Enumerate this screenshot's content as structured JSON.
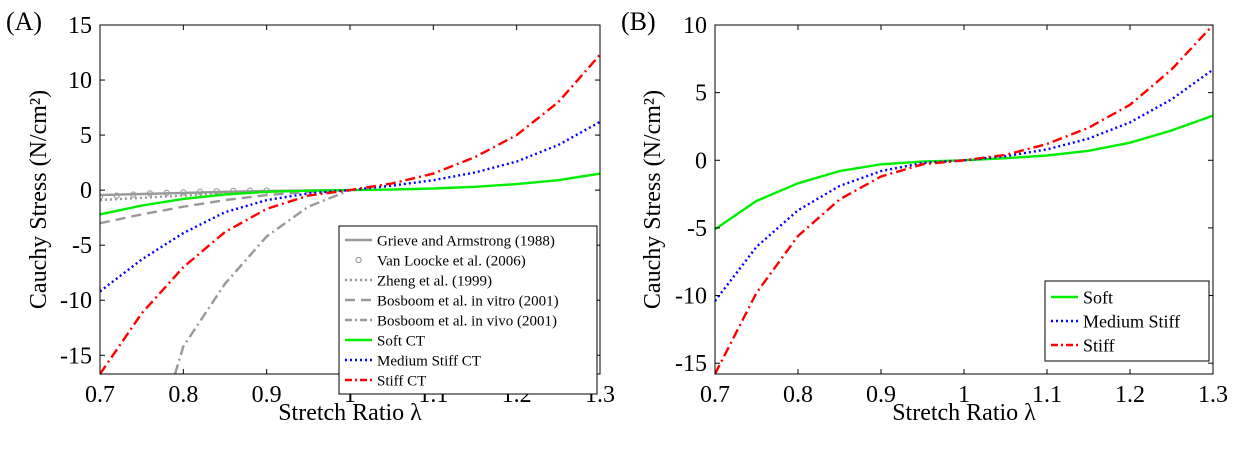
{
  "chart_data": [
    {
      "type": "line",
      "panel_label": "(A)",
      "xlabel": "Stretch Ratio λ",
      "ylabel": "Cauchy Stress (N/cm²)",
      "xlim": [
        0.7,
        1.3
      ],
      "ylim": [
        -16.7,
        15
      ],
      "xticks": [
        "0.7",
        "0.8",
        "0.9",
        "1",
        "1.1",
        "1.2",
        "1.3"
      ],
      "yticks": [
        "15",
        "10",
        "5",
        "0",
        "-5",
        "-10",
        "-15"
      ],
      "xtick_values": [
        0.7,
        0.8,
        0.9,
        1.0,
        1.1,
        1.2,
        1.3
      ],
      "ytick_values": [
        15,
        10,
        5,
        0,
        -5,
        -10,
        -15
      ],
      "grid": false,
      "legend_position": "bottom-right",
      "series": [
        {
          "name": "Grieve and Armstrong (1988)",
          "color": "#999999",
          "style": "solid",
          "x": [
            0.7,
            0.75,
            0.8,
            0.85,
            0.9,
            0.95,
            1.0
          ],
          "y": [
            -0.45,
            -0.35,
            -0.25,
            -0.15,
            -0.08,
            -0.03,
            0
          ]
        },
        {
          "name": "Van Loocke et al. (2006)",
          "color": "#999999",
          "style": "circle",
          "x": [
            0.7,
            0.72,
            0.74,
            0.76,
            0.78,
            0.8,
            0.82,
            0.84,
            0.86,
            0.88,
            0.9
          ],
          "y": [
            -0.6,
            -0.5,
            -0.4,
            -0.3,
            -0.25,
            -0.2,
            -0.15,
            -0.1,
            -0.07,
            -0.05,
            -0.03
          ]
        },
        {
          "name": "Zheng et al. (1999)",
          "color": "#999999",
          "style": "dotted",
          "x": [
            0.7,
            0.75,
            0.8,
            0.85,
            0.9,
            0.95,
            1.0
          ],
          "y": [
            -0.9,
            -0.7,
            -0.5,
            -0.3,
            -0.15,
            -0.05,
            0
          ]
        },
        {
          "name": "Bosboom et al. in vitro (2001)",
          "color": "#999999",
          "style": "dashed",
          "x": [
            0.7,
            0.75,
            0.8,
            0.85,
            0.9,
            0.95,
            1.0
          ],
          "y": [
            -3.0,
            -2.2,
            -1.5,
            -0.9,
            -0.45,
            -0.15,
            0
          ]
        },
        {
          "name": "Bosboom et al. in vivo (2001)",
          "color": "#999999",
          "style": "dashdot",
          "x": [
            0.79,
            0.8,
            0.85,
            0.9,
            0.95,
            1.0
          ],
          "y": [
            -16.7,
            -14.2,
            -8.5,
            -4.2,
            -1.5,
            0
          ]
        },
        {
          "name": "Soft CT",
          "color": "#00ee00",
          "style": "solid",
          "x": [
            0.7,
            0.75,
            0.8,
            0.85,
            0.9,
            0.95,
            1.0,
            1.05,
            1.1,
            1.15,
            1.2,
            1.25,
            1.3
          ],
          "y": [
            -2.2,
            -1.4,
            -0.8,
            -0.4,
            -0.15,
            -0.05,
            0,
            0.05,
            0.15,
            0.3,
            0.55,
            0.9,
            1.5
          ]
        },
        {
          "name": "Medium Stiff CT",
          "color": "#0000ff",
          "style": "dotted",
          "x": [
            0.7,
            0.75,
            0.8,
            0.85,
            0.9,
            0.95,
            1.0,
            1.05,
            1.1,
            1.15,
            1.2,
            1.25,
            1.3
          ],
          "y": [
            -9.2,
            -6.3,
            -3.9,
            -2.0,
            -0.9,
            -0.3,
            0,
            0.4,
            0.9,
            1.6,
            2.6,
            4.1,
            6.2
          ]
        },
        {
          "name": "Stiff CT",
          "color": "#ff0000",
          "style": "dashdot",
          "x": [
            0.7,
            0.75,
            0.8,
            0.85,
            0.9,
            0.95,
            1.0,
            1.05,
            1.1,
            1.15,
            1.2,
            1.25,
            1.3
          ],
          "y": [
            -16.7,
            -11.2,
            -7.0,
            -3.8,
            -1.7,
            -0.5,
            0,
            0.6,
            1.5,
            3.0,
            5.0,
            8.0,
            12.3
          ]
        }
      ]
    },
    {
      "type": "line",
      "panel_label": "(B)",
      "xlabel": "Stretch Ratio λ",
      "ylabel": "Cauchy Stress (N/cm²)",
      "xlim": [
        0.7,
        1.3
      ],
      "ylim": [
        -15.8,
        10
      ],
      "xticks": [
        "0.7",
        "0.8",
        "0.9",
        "1",
        "1.1",
        "1.2",
        "1.3"
      ],
      "yticks": [
        "10",
        "5",
        "0",
        "-5",
        "-10",
        "-15"
      ],
      "xtick_values": [
        0.7,
        0.8,
        0.9,
        1.0,
        1.1,
        1.2,
        1.3
      ],
      "ytick_values": [
        10,
        5,
        0,
        -5,
        -10,
        -15
      ],
      "grid": false,
      "legend_position": "bottom-right",
      "series": [
        {
          "name": "Soft",
          "color": "#00ee00",
          "style": "solid",
          "x": [
            0.7,
            0.75,
            0.8,
            0.85,
            0.9,
            0.95,
            1.0,
            1.05,
            1.1,
            1.15,
            1.2,
            1.25,
            1.3
          ],
          "y": [
            -5.1,
            -3.0,
            -1.7,
            -0.8,
            -0.3,
            -0.1,
            0,
            0.15,
            0.35,
            0.7,
            1.3,
            2.2,
            3.3
          ]
        },
        {
          "name": "Medium Stiff",
          "color": "#0000ff",
          "style": "dotted",
          "x": [
            0.7,
            0.75,
            0.8,
            0.85,
            0.9,
            0.95,
            1.0,
            1.05,
            1.1,
            1.15,
            1.2,
            1.25,
            1.3
          ],
          "y": [
            -10.4,
            -6.4,
            -3.7,
            -1.9,
            -0.8,
            -0.2,
            0,
            0.3,
            0.8,
            1.6,
            2.8,
            4.5,
            6.7
          ]
        },
        {
          "name": "Stiff",
          "color": "#ff0000",
          "style": "dashdot",
          "x": [
            0.7,
            0.75,
            0.8,
            0.85,
            0.9,
            0.95,
            1.0,
            1.05,
            1.1,
            1.15,
            1.2,
            1.25,
            1.3
          ],
          "y": [
            -15.8,
            -9.8,
            -5.6,
            -2.9,
            -1.2,
            -0.3,
            0,
            0.4,
            1.2,
            2.4,
            4.1,
            6.7,
            10.0
          ]
        }
      ]
    }
  ]
}
